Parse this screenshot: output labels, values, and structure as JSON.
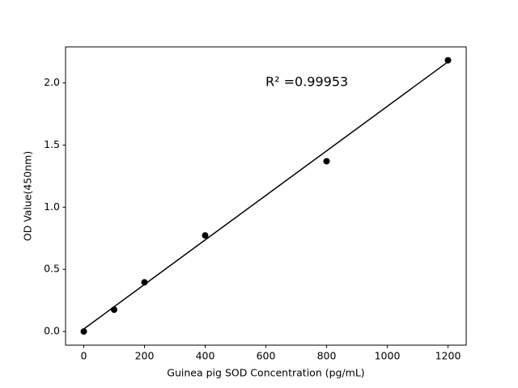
{
  "chart_data": {
    "type": "scatter",
    "xlabel": "Guinea pig SOD Concentration (pg/mL)",
    "ylabel": "OD Value(450nm)",
    "annotation": "R² =0.99953",
    "series": [
      {
        "style": "markers",
        "color": "#000000",
        "x": [
          0,
          100,
          200,
          400,
          800,
          1200
        ],
        "values": [
          0.0,
          0.175,
          0.396,
          0.773,
          1.37,
          2.182
        ]
      },
      {
        "style": "line",
        "color": "#000000",
        "x": [
          0,
          1200
        ],
        "values": [
          0.02,
          2.17
        ]
      }
    ],
    "xlim": [
      -60,
      1260
    ],
    "ylim": [
      -0.11,
      2.29
    ],
    "xticks": [
      0,
      200,
      400,
      600,
      800,
      1000,
      1200
    ],
    "yticks": [
      {
        "value": 0,
        "label": "0.0"
      },
      0.5,
      {
        "value": 1,
        "label": "1.0"
      },
      1.5,
      {
        "value": 2,
        "label": "2.0"
      }
    ],
    "grid": false
  }
}
